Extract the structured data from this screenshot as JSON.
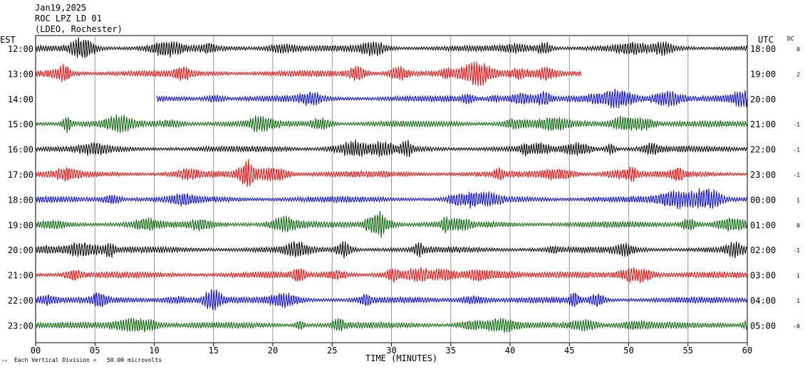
{
  "header": {
    "date": "Jan19,2025",
    "station": "ROC LPZ LD 01",
    "network": "(LDEO, Rochester)"
  },
  "labels": {
    "left_zone": "EST",
    "right_zone": "UTC",
    "dc": "DC",
    "xlabel": "TIME (MINUTES)",
    "scale_note": "Each Vertical Division =   50.00 microvolts"
  },
  "chart_data": {
    "type": "line",
    "title": "ROC LPZ LD 01",
    "xlabel": "TIME (MINUTES)",
    "xlim": [
      0,
      60
    ],
    "xticks": [
      "00",
      "05",
      "10",
      "15",
      "20",
      "25",
      "30",
      "35",
      "40",
      "45",
      "50",
      "55",
      "60"
    ],
    "grid": true,
    "series": [
      {
        "est": "12:00",
        "utc": "18:00",
        "dc": "0",
        "color": "#000000",
        "start_min": 0,
        "end_min": 60
      },
      {
        "est": "13:00",
        "utc": "19:00",
        "dc": "2",
        "color": "#ff0000",
        "start_min": 0,
        "end_min": 46
      },
      {
        "est": "14:00",
        "utc": "20:00",
        "dc": "",
        "color": "#0000ff",
        "start_min": 10.2,
        "end_min": 60
      },
      {
        "est": "15:00",
        "utc": "21:00",
        "dc": "-1",
        "color": "#006400",
        "start_min": 0,
        "end_min": 60
      },
      {
        "est": "16:00",
        "utc": "22:00",
        "dc": "-1",
        "color": "#000000",
        "start_min": 0,
        "end_min": 60
      },
      {
        "est": "17:00",
        "utc": "23:00",
        "dc": "-1",
        "color": "#ff0000",
        "start_min": 0,
        "end_min": 60
      },
      {
        "est": "18:00",
        "utc": "00:00",
        "dc": "1",
        "color": "#0000ff",
        "start_min": 0,
        "end_min": 60
      },
      {
        "est": "19:00",
        "utc": "01:00",
        "dc": "0",
        "color": "#006400",
        "start_min": 0,
        "end_min": 60
      },
      {
        "est": "20:00",
        "utc": "02:00",
        "dc": "-1",
        "color": "#000000",
        "start_min": 0,
        "end_min": 60
      },
      {
        "est": "21:00",
        "utc": "03:00",
        "dc": "1",
        "color": "#ff0000",
        "start_min": 0,
        "end_min": 60
      },
      {
        "est": "22:00",
        "utc": "04:00",
        "dc": "1",
        "color": "#0000ff",
        "start_min": 0,
        "end_min": 60
      },
      {
        "est": "23:00",
        "utc": "05:00",
        "dc": "-0",
        "color": "#006400",
        "start_min": 0,
        "end_min": 60
      }
    ]
  }
}
